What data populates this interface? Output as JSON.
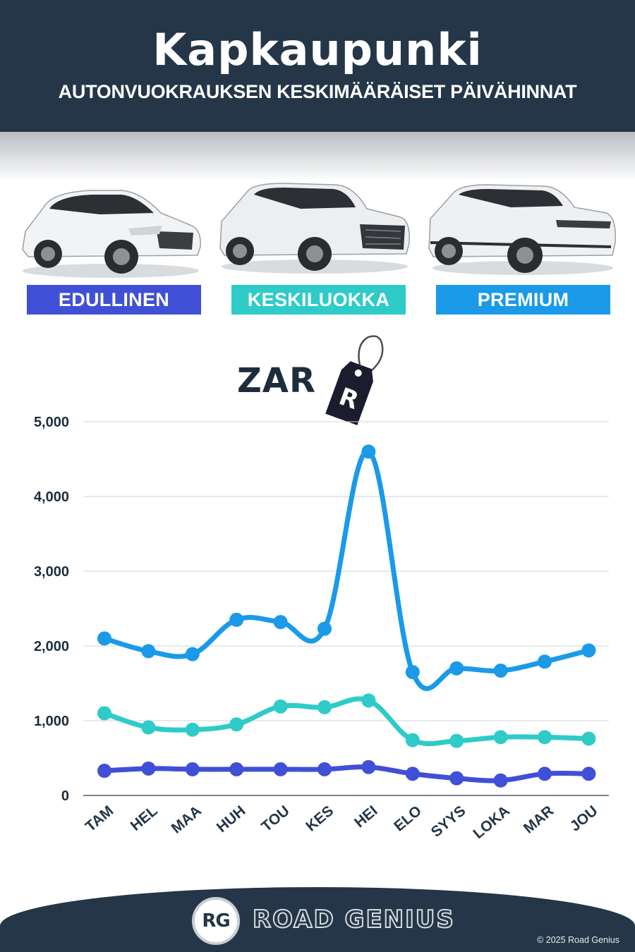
{
  "header": {
    "title": "Kapkaupunki",
    "subtitle": "AUTONVUOKRAUKSEN KESKIMÄÄRÄISET PÄIVÄHINNAT"
  },
  "categories": [
    {
      "label": "EDULLINEN",
      "color": "#4050d6"
    },
    {
      "label": "KESKILUOKKA",
      "color": "#2ecbc8"
    },
    {
      "label": "PREMIUM",
      "color": "#1a9ae8"
    }
  ],
  "currency": {
    "code": "ZAR",
    "symbol": "R"
  },
  "chart_data": {
    "type": "line",
    "x": [
      "TAM",
      "HEL",
      "MAA",
      "HUH",
      "TOU",
      "KES",
      "HEI",
      "ELO",
      "SYYS",
      "LOKA",
      "MAR",
      "JOU"
    ],
    "yticks": [
      "0",
      "1,000",
      "2,000",
      "3,000",
      "4,000",
      "5,000"
    ],
    "ylim": [
      0,
      5000
    ],
    "grid": true,
    "series": [
      {
        "name": "PREMIUM",
        "color": "#1a9ae8",
        "values": [
          2100,
          1930,
          1890,
          2350,
          2320,
          2230,
          4600,
          1650,
          1700,
          1670,
          1790,
          1940
        ]
      },
      {
        "name": "KESKILUOKKA",
        "color": "#2ecbc8",
        "values": [
          1100,
          910,
          880,
          950,
          1190,
          1180,
          1270,
          740,
          730,
          780,
          780,
          760
        ]
      },
      {
        "name": "EDULLINEN",
        "color": "#4050d6",
        "values": [
          330,
          360,
          350,
          350,
          350,
          350,
          380,
          290,
          230,
          200,
          290,
          290
        ]
      }
    ]
  },
  "footer": {
    "logo_mark": "RG",
    "brand": "ROAD GENIUS",
    "copyright": "© 2025 Road Genius"
  }
}
